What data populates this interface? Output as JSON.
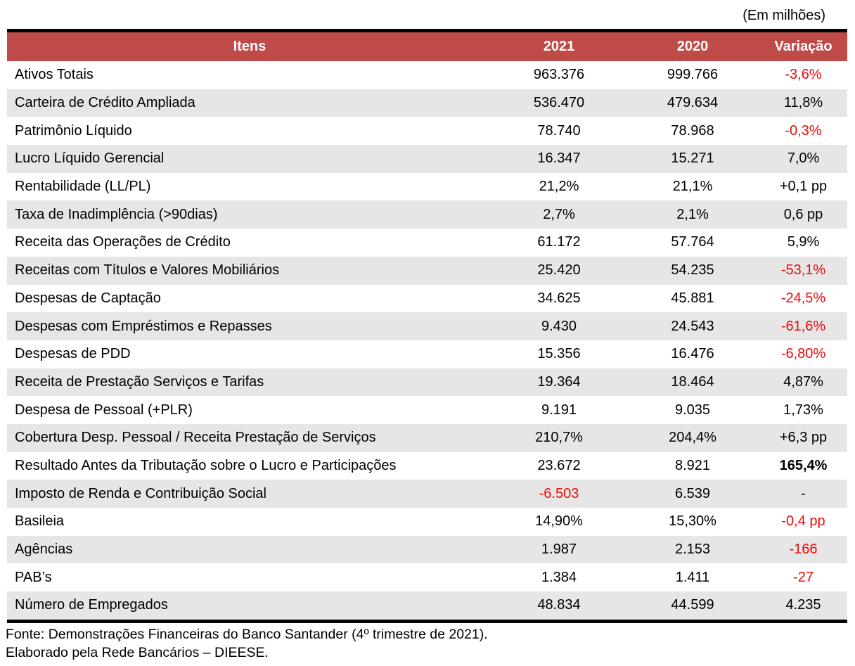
{
  "caption": "(Em milhões)",
  "colors": {
    "header_bg": "#be4b48",
    "header_text": "#ffffff",
    "row_stripe": "#e7e6e6",
    "negative_text": "#ee0a0a",
    "body_text": "#000000",
    "border": "#000000"
  },
  "footer": {
    "source": "Fonte: Demonstrações Financeiras do Banco Santander (4º trimestre de 2021).",
    "elaboration": "Elaborado pela Rede Bancários – DIEESE."
  },
  "chart_data": {
    "type": "table",
    "unit_note": "(Em milhões)",
    "columns": [
      "Itens",
      "2021",
      "2020",
      "Variação"
    ],
    "rows": [
      {
        "item": "Ativos Totais",
        "y2021": "963.376",
        "y2020": "999.766",
        "variation": "-3,6%",
        "variation_negative": true
      },
      {
        "item": "Carteira de Crédito Ampliada",
        "y2021": "536.470",
        "y2020": "479.634",
        "variation": "11,8%"
      },
      {
        "item": "Patrimônio Líquido",
        "y2021": "78.740",
        "y2020": "78.968",
        "variation": "-0,3%",
        "variation_negative": true
      },
      {
        "item": "Lucro Líquido Gerencial",
        "y2021": "16.347",
        "y2020": "15.271",
        "variation": "7,0%"
      },
      {
        "item": "Rentabilidade (LL/PL)",
        "y2021": "21,2%",
        "y2020": "21,1%",
        "variation": "+0,1 pp"
      },
      {
        "item": "Taxa de Inadimplência (>90dias)",
        "y2021": "2,7%",
        "y2020": "2,1%",
        "variation": "0,6 pp"
      },
      {
        "item": "Receita das Operações de Crédito",
        "y2021": "61.172",
        "y2020": "57.764",
        "variation": "5,9%"
      },
      {
        "item": "Receitas com Títulos e Valores Mobiliários",
        "y2021": "25.420",
        "y2020": "54.235",
        "variation": "-53,1%",
        "variation_negative": true
      },
      {
        "item": "Despesas de Captação",
        "y2021": "34.625",
        "y2020": "45.881",
        "variation": "-24,5%",
        "variation_negative": true
      },
      {
        "item": "Despesas com Empréstimos e Repasses",
        "y2021": "9.430",
        "y2020": "24.543",
        "variation": "-61,6%",
        "variation_negative": true
      },
      {
        "item": "Despesas de PDD",
        "y2021": "15.356",
        "y2020": "16.476",
        "variation": "-6,80%",
        "variation_negative": true
      },
      {
        "item": "Receita de Prestação Serviços e Tarifas",
        "y2021": "19.364",
        "y2020": "18.464",
        "variation": "4,87%"
      },
      {
        "item": "Despesa de Pessoal (+PLR)",
        "y2021": "9.191",
        "y2020": "9.035",
        "variation": "1,73%"
      },
      {
        "item": "Cobertura Desp. Pessoal / Receita Prestação de Serviços",
        "y2021": "210,7%",
        "y2020": "204,4%",
        "variation": "+6,3 pp"
      },
      {
        "item": "Resultado Antes da Tributação sobre o Lucro e Participações",
        "y2021": "23.672",
        "y2020": "8.921",
        "variation": "165,4%",
        "variation_bold": true
      },
      {
        "item": "Imposto de Renda e Contribuição Social",
        "y2021": "-6.503",
        "y2020": "6.539",
        "variation": "-",
        "y2021_negative": true
      },
      {
        "item": "Basileia",
        "y2021": "14,90%",
        "y2020": "15,30%",
        "variation": "-0,4 pp",
        "variation_negative": true
      },
      {
        "item": "Agências",
        "y2021": "1.987",
        "y2020": "2.153",
        "variation": "-166",
        "variation_negative": true
      },
      {
        "item": "PAB’s",
        "y2021": "1.384",
        "y2020": "1.411",
        "variation": "-27",
        "variation_negative": true
      },
      {
        "item": "Número de Empregados",
        "y2021": "48.834",
        "y2020": "44.599",
        "variation": "4.235"
      }
    ]
  }
}
